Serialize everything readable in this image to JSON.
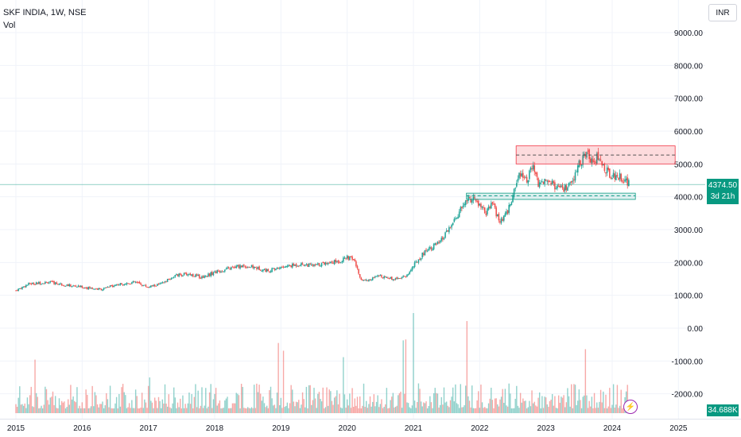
{
  "legend": {
    "title": "SKF INDIA, 1W, NSE",
    "vol": "Vol"
  },
  "currency_button": "INR",
  "price_tag": {
    "price": "4374.50",
    "countdown": "3d 21h"
  },
  "volume_tag": "34.688K",
  "colors": {
    "up": "#26a69a",
    "down": "#ef5350",
    "accent": "#089981",
    "zone_red": "#f7a1a5",
    "zone_green": "#b2dfdb",
    "bolt": "#9c27b0"
  },
  "icons": {
    "alert": "lightning-bolt-icon"
  },
  "chart_data": {
    "type": "candlestick",
    "y_ticks": [
      "9000.00",
      "8000.00",
      "7000.00",
      "6000.00",
      "5000.00",
      "4000.00",
      "3000.00",
      "2000.00",
      "1000.00",
      "0.00",
      "-1000.00",
      "-2000.00"
    ],
    "y_tick_values": [
      9000,
      8000,
      7000,
      6000,
      5000,
      4000,
      3000,
      2000,
      1000,
      0,
      -1000,
      -2000
    ],
    "x_ticks": [
      "2015",
      "2016",
      "2017",
      "2018",
      "2019",
      "2020",
      "2021",
      "2022",
      "2023",
      "2024",
      "2025"
    ],
    "x_tick_values": [
      2015,
      2016,
      2017,
      2018,
      2019,
      2020,
      2021,
      2022,
      2023,
      2024,
      2025
    ],
    "price_path": [
      [
        2015.0,
        1150
      ],
      [
        2015.2,
        1350
      ],
      [
        2015.5,
        1400
      ],
      [
        2015.8,
        1300
      ],
      [
        2016.0,
        1250
      ],
      [
        2016.3,
        1180
      ],
      [
        2016.5,
        1320
      ],
      [
        2016.8,
        1400
      ],
      [
        2017.0,
        1250
      ],
      [
        2017.2,
        1350
      ],
      [
        2017.4,
        1600
      ],
      [
        2017.6,
        1650
      ],
      [
        2017.8,
        1550
      ],
      [
        2018.0,
        1700
      ],
      [
        2018.2,
        1800
      ],
      [
        2018.4,
        1900
      ],
      [
        2018.6,
        1850
      ],
      [
        2018.8,
        1750
      ],
      [
        2019.0,
        1850
      ],
      [
        2019.3,
        1950
      ],
      [
        2019.5,
        1900
      ],
      [
        2019.7,
        2000
      ],
      [
        2019.9,
        2050
      ],
      [
        2020.0,
        2150
      ],
      [
        2020.1,
        2100
      ],
      [
        2020.2,
        1500
      ],
      [
        2020.3,
        1450
      ],
      [
        2020.5,
        1600
      ],
      [
        2020.7,
        1500
      ],
      [
        2020.9,
        1600
      ],
      [
        2021.0,
        1900
      ],
      [
        2021.2,
        2400
      ],
      [
        2021.4,
        2600
      ],
      [
        2021.6,
        3200
      ],
      [
        2021.8,
        3900
      ],
      [
        2021.9,
        3950
      ],
      [
        2022.1,
        3500
      ],
      [
        2022.2,
        3800
      ],
      [
        2022.3,
        3200
      ],
      [
        2022.4,
        3450
      ],
      [
        2022.5,
        4000
      ],
      [
        2022.6,
        4800
      ],
      [
        2022.7,
        4500
      ],
      [
        2022.8,
        4900
      ],
      [
        2022.9,
        4300
      ],
      [
        2023.0,
        4600
      ],
      [
        2023.2,
        4200
      ],
      [
        2023.3,
        4250
      ],
      [
        2023.4,
        4400
      ],
      [
        2023.5,
        5000
      ],
      [
        2023.6,
        5300
      ],
      [
        2023.7,
        5150
      ],
      [
        2023.8,
        5200
      ],
      [
        2023.9,
        4800
      ],
      [
        2024.0,
        4650
      ],
      [
        2024.15,
        4600
      ],
      [
        2024.25,
        4380
      ]
    ],
    "zones": [
      {
        "kind": "resistance",
        "from": 2022.55,
        "to": 2024.95,
        "low": 5000,
        "high": 5550,
        "dashed_level": 5270
      },
      {
        "kind": "support",
        "from": 2021.8,
        "to": 2024.35,
        "low": 3920,
        "high": 4110,
        "dashed_level": 4030
      }
    ],
    "last_price": 4374.5,
    "volume_peaks": [
      [
        2021.0,
        1.0
      ],
      [
        2021.8,
        0.92
      ]
    ]
  }
}
